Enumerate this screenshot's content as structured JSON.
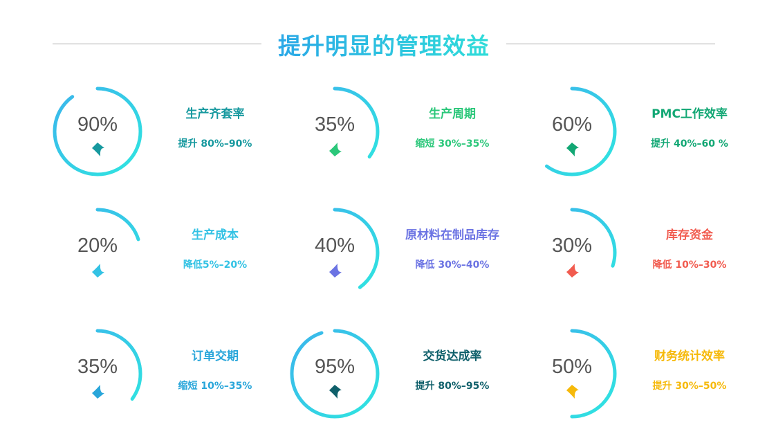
{
  "title": "提升明显的管理效益",
  "items": [
    {
      "value": 90,
      "pct": "90%",
      "label": "生产齐套率",
      "desc": "提升 80%–90%",
      "direction": "up",
      "color": "#17999f"
    },
    {
      "value": 35,
      "pct": "35%",
      "label": "生产周期",
      "desc": "缩短 30%–35%",
      "direction": "down",
      "color": "#2bc77a"
    },
    {
      "value": 60,
      "pct": "60%",
      "label": "PMC工作效率",
      "desc": "提升 40%–60 %",
      "direction": "up",
      "color": "#12a774"
    },
    {
      "value": 20,
      "pct": "20%",
      "label": "生产成本",
      "desc": "降低5%–20%",
      "direction": "down",
      "color": "#33c2e4"
    },
    {
      "value": 40,
      "pct": "40%",
      "label": "原材料在制品库存",
      "desc": "降低 30%–40%",
      "direction": "down",
      "color": "#6b73e3"
    },
    {
      "value": 30,
      "pct": "30%",
      "label": "库存资金",
      "desc": "降低 10%–30%",
      "direction": "down",
      "color": "#f15b4f"
    },
    {
      "value": 35,
      "pct": "35%",
      "label": "订单交期",
      "desc": "缩短 10%–35%",
      "direction": "down",
      "color": "#29a6da"
    },
    {
      "value": 95,
      "pct": "95%",
      "label": "交货达成率",
      "desc": "提升 80%–95%",
      "direction": "up",
      "color": "#0e5f6a"
    },
    {
      "value": 50,
      "pct": "50%",
      "label": "财务统计效率",
      "desc": "提升 30%–50%",
      "direction": "up",
      "color": "#f6b90a"
    }
  ],
  "ring_colors": [
    "#3bb4ec",
    "#2fe6e0"
  ]
}
